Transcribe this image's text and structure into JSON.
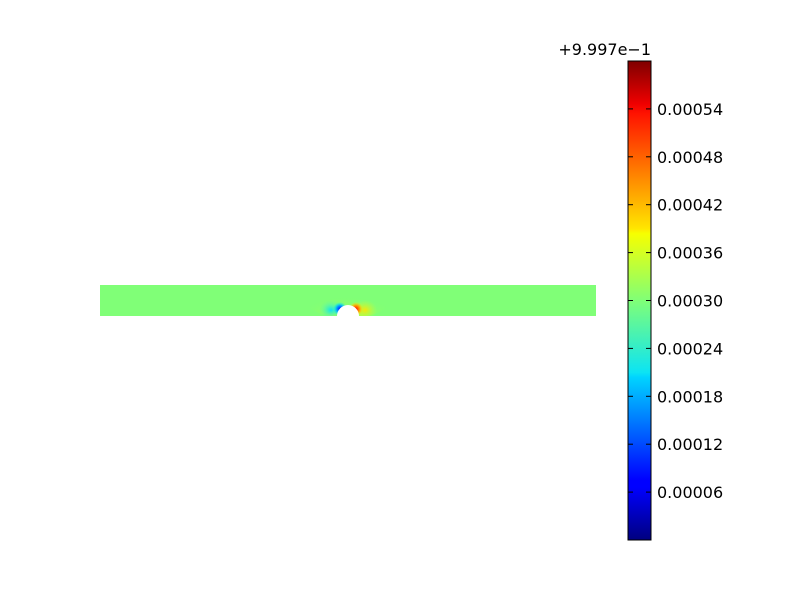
{
  "chart_data": {
    "type": "heatmap",
    "title": "",
    "xlabel": "",
    "ylabel": "",
    "colormap": "jet",
    "colors": {
      "field": "#80ff77",
      "background": "#ffffff",
      "obstacle": "#ffffff"
    },
    "colorbar": {
      "offset_label": "+9.997e−1",
      "range": [
        0.0,
        0.0006
      ],
      "ticks": [
        6e-05,
        0.00012,
        0.00018,
        0.00024,
        0.0003,
        0.00036,
        0.00042,
        0.00048,
        0.00054
      ],
      "tick_labels": [
        "0.00006",
        "0.00012",
        "0.00018",
        "0.00024",
        "0.00030",
        "0.00036",
        "0.00042",
        "0.00048",
        "0.00054"
      ]
    },
    "field": {
      "description_value": 0.0003,
      "features": [
        "semicircular obstacle on lower edge of channel",
        "local high values (red) on right side of obstacle",
        "local low values (blue) on left side of obstacle"
      ]
    }
  }
}
